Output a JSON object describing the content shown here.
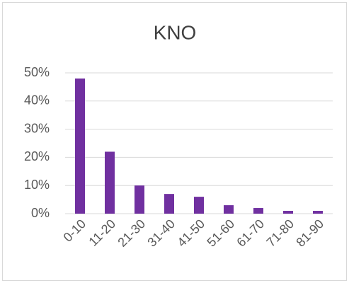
{
  "chart_data": {
    "type": "bar",
    "title": "KNO",
    "categories": [
      "0-10",
      "11-20",
      "21-30",
      "31-40",
      "41-50",
      "51-60",
      "61-70",
      "71-80",
      "81-90"
    ],
    "values": [
      48,
      22,
      10,
      7,
      6,
      3,
      2,
      1,
      1
    ],
    "color": "#7030a0",
    "ylim": [
      0,
      50
    ],
    "yticks": [
      {
        "value": 0,
        "label": "0%"
      },
      {
        "value": 10,
        "label": "10%"
      },
      {
        "value": 20,
        "label": "20%"
      },
      {
        "value": 30,
        "label": "30%"
      },
      {
        "value": 40,
        "label": "40%"
      },
      {
        "value": 50,
        "label": "50%"
      }
    ],
    "grid": true
  }
}
